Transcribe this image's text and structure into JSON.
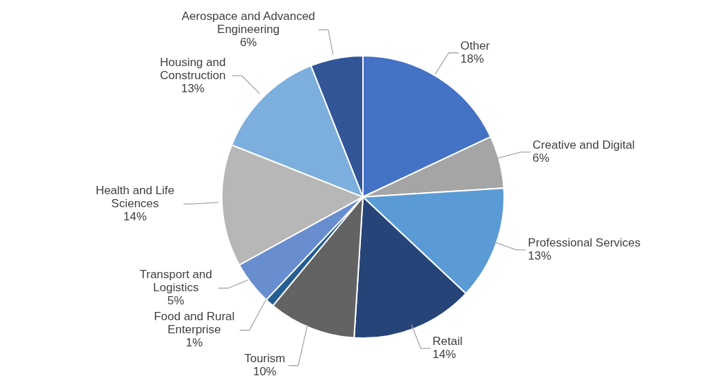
{
  "chart_data": {
    "type": "pie",
    "categories": [
      "Other",
      "Creative and Digital",
      "Professional Services",
      "Retail",
      "Tourism",
      "Food and Rural Enterprise",
      "Transport and Logistics",
      "Health and Life Sciences",
      "Housing and Construction",
      "Aerospace and Advanced Engineering"
    ],
    "values": [
      18,
      6,
      13,
      14,
      10,
      1,
      5,
      14,
      13,
      6
    ],
    "colors": [
      "#4472c4",
      "#a5a5a5",
      "#5b9bd5",
      "#264478",
      "#636363",
      "#255e91",
      "#698ed0",
      "#b7b7b7",
      "#7cafdd",
      "#325597"
    ],
    "value_labels": [
      "18%",
      "6%",
      "13%",
      "14%",
      "10%",
      "1%",
      "5%",
      "14%",
      "13%",
      "6%"
    ]
  }
}
